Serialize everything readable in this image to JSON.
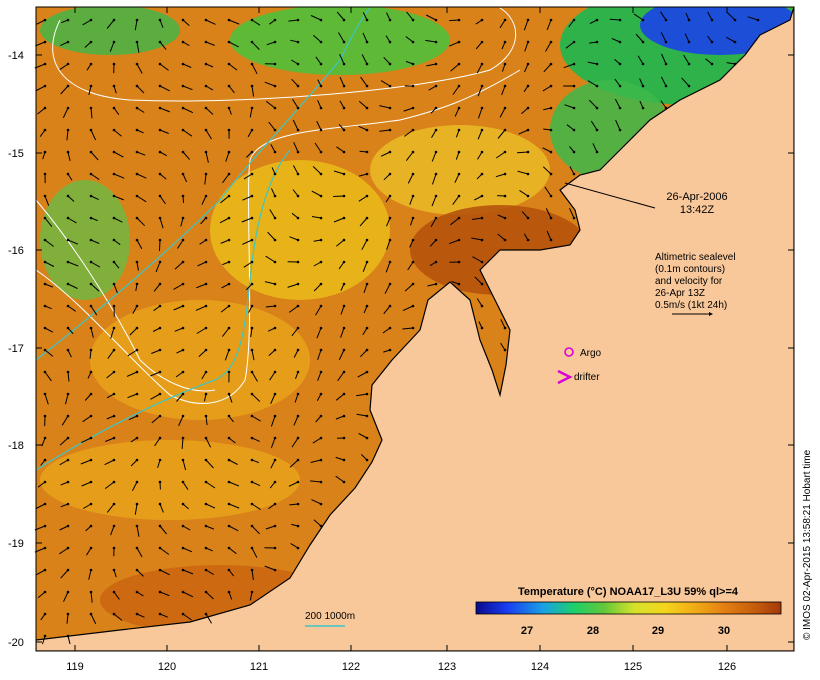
{
  "map": {
    "date_label": "26-Apr-2006",
    "time_label": "13:42Z",
    "legend_lines": [
      "Altimetric sealevel",
      "(0.1m contours)",
      "and velocity for",
      "26-Apr 13Z",
      "0.5m/s (1kt 24h)"
    ],
    "argo_label": "Argo",
    "drifter_label": "drifter",
    "bathymetry_label": "200  1000m",
    "colorbar_title": "Temperature (°C) NOAA17_L3U 59% ql>=4",
    "colorbar_ticks": [
      "27",
      "28",
      "29",
      "30"
    ],
    "lat_ticks": [
      "-14",
      "-15",
      "-16",
      "-17",
      "-18",
      "-19",
      "-20"
    ],
    "lon_ticks": [
      "119",
      "120",
      "121",
      "122",
      "123",
      "124",
      "125",
      "126"
    ],
    "credit": "© IMOS 02-Apr-2015 13:58:21 Hobart time",
    "colors": {
      "land": "#f9c89a",
      "sea_warm": "#d9821a",
      "sea_hot": "#b5530c",
      "sea_mid": "#e8a51a",
      "sea_cool": "#2fb24a",
      "contour": "#ffffff",
      "bathy": "#3cc6c6",
      "argo": "#d800d8"
    }
  }
}
